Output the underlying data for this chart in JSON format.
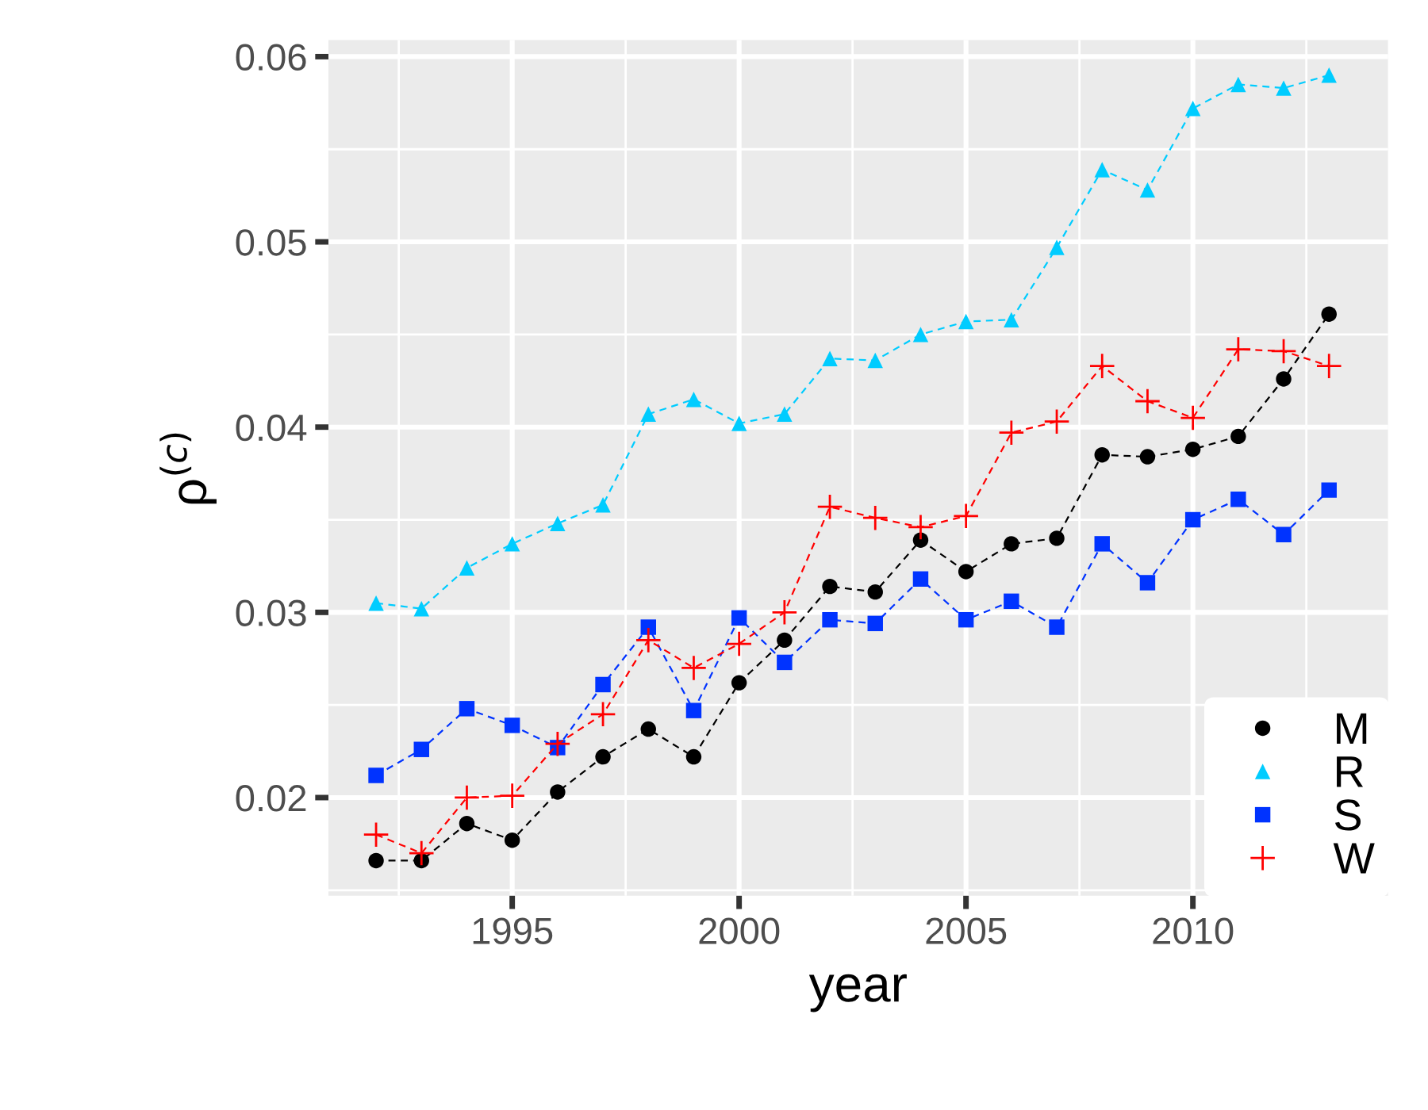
{
  "chart_data": {
    "type": "line",
    "xlabel": "year",
    "ylabel": "ρ$^{(c)}$",
    "x": [
      1992,
      1993,
      1994,
      1995,
      1996,
      1997,
      1998,
      1999,
      2000,
      2001,
      2002,
      2003,
      2004,
      2005,
      2006,
      2007,
      2008,
      2009,
      2010,
      2011,
      2012,
      2013
    ],
    "series": [
      {
        "name": "M",
        "color": "#000000",
        "marker": "circle",
        "values": [
          0.0166,
          0.0166,
          0.0186,
          0.0177,
          0.0203,
          0.0222,
          0.0237,
          0.0222,
          0.0262,
          0.0285,
          0.0314,
          0.0311,
          0.0339,
          0.0322,
          0.0337,
          0.034,
          0.0385,
          0.0384,
          0.0388,
          0.0395,
          0.0426,
          0.0461
        ]
      },
      {
        "name": "R",
        "color": "#00ccff",
        "marker": "triangle",
        "values": [
          0.0305,
          0.0302,
          0.0324,
          0.0337,
          0.0348,
          0.0358,
          0.0407,
          0.0415,
          0.0402,
          0.0407,
          0.0437,
          0.0436,
          0.045,
          0.0457,
          0.0458,
          0.0497,
          0.0539,
          0.0528,
          0.0572,
          0.0585,
          0.0583,
          0.059
        ]
      },
      {
        "name": "S",
        "color": "#0033ff",
        "marker": "square",
        "values": [
          0.0212,
          0.0226,
          0.0248,
          0.0239,
          0.0227,
          0.0261,
          0.0292,
          0.0247,
          0.0297,
          0.0273,
          0.0296,
          0.0294,
          0.0318,
          0.0296,
          0.0306,
          0.0292,
          0.0337,
          0.0316,
          0.035,
          0.0361,
          0.0342,
          0.0366
        ]
      },
      {
        "name": "W",
        "color": "#ff0000",
        "marker": "cross",
        "values": [
          0.018,
          0.017,
          0.02,
          0.0201,
          0.0229,
          0.0245,
          0.0285,
          0.027,
          0.0283,
          0.03,
          0.0357,
          0.0351,
          0.0346,
          0.0352,
          0.0397,
          0.0403,
          0.0433,
          0.0414,
          0.0405,
          0.0442,
          0.0441,
          0.0433
        ]
      }
    ],
    "line_style": "dashed",
    "xlim": [
      1990.95,
      2014.3
    ],
    "ylim": [
      0.0147,
      0.0609
    ],
    "xticks": [
      1995,
      2000,
      2005,
      2010
    ],
    "yticks": [
      0.02,
      0.03,
      0.04,
      0.05,
      0.06
    ],
    "grid": true,
    "legend": "bottom right"
  }
}
